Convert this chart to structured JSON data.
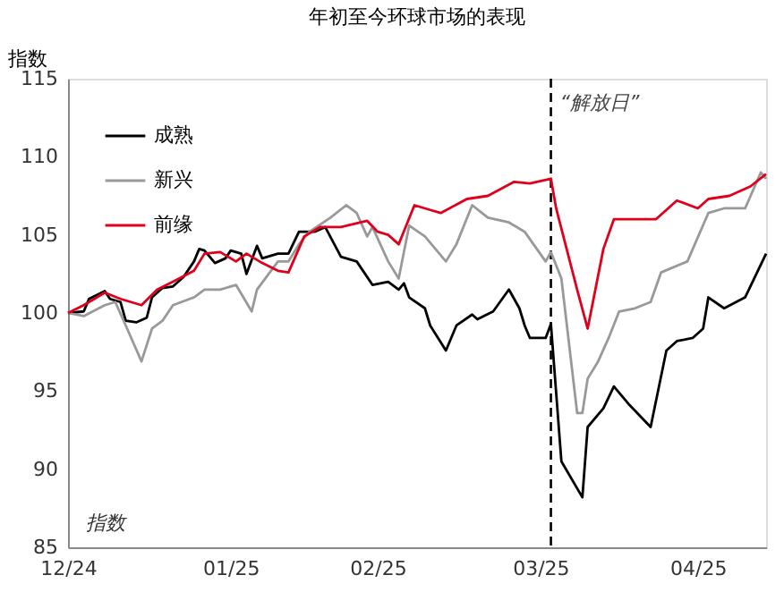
{
  "chart_data": {
    "type": "line",
    "title": "年初至今环球市场的表现",
    "ylabel": "指数",
    "annotations": [
      "指数"
    ],
    "xlim": [
      "2024-12-31",
      "2025-05-13"
    ],
    "xticks": [
      {
        "value": "2024-12-31",
        "label": "12/24"
      },
      {
        "value": "2025-01-31",
        "label": "01/25"
      },
      {
        "value": "2025-02-28",
        "label": "02/25"
      },
      {
        "value": "2025-03-31",
        "label": "03/25"
      },
      {
        "value": "2025-04-30",
        "label": "04/25"
      }
    ],
    "ylim": [
      85,
      115
    ],
    "yticks": [
      85,
      90,
      95,
      100,
      105,
      110,
      115
    ],
    "grid": false,
    "legend": "top left",
    "line_style": "solid",
    "marker": "none",
    "ref_lines": [
      {
        "axis": "x",
        "value": "2025-04-02",
        "label": "“解放日”",
        "color": "#000000",
        "line_style": "dashed"
      }
    ],
    "series": [
      {
        "name": "成熟",
        "color": "#000000",
        "x": [
          "2024-12-31",
          "2025-01-03",
          "2025-01-04",
          "2025-01-07",
          "2025-01-08",
          "2025-01-10",
          "2025-01-11",
          "2025-01-13",
          "2025-01-15",
          "2025-01-16",
          "2025-01-18",
          "2025-01-20",
          "2025-01-22",
          "2025-01-24",
          "2025-01-25",
          "2025-01-26",
          "2025-01-28",
          "2025-01-30",
          "2025-01-31",
          "2025-02-02",
          "2025-02-03",
          "2025-02-05",
          "2025-02-06",
          "2025-02-09",
          "2025-02-11",
          "2025-02-13",
          "2025-02-16",
          "2025-02-18",
          "2025-02-21",
          "2025-02-24",
          "2025-02-27",
          "2025-03-02",
          "2025-03-04",
          "2025-03-05",
          "2025-03-06",
          "2025-03-09",
          "2025-03-10",
          "2025-03-13",
          "2025-03-14",
          "2025-03-15",
          "2025-03-18",
          "2025-03-19",
          "2025-03-22",
          "2025-03-25",
          "2025-03-27",
          "2025-03-28",
          "2025-03-29",
          "2025-04-01",
          "2025-04-02",
          "2025-04-04",
          "2025-04-08",
          "2025-04-09",
          "2025-04-12",
          "2025-04-14",
          "2025-04-17",
          "2025-04-21",
          "2025-04-24",
          "2025-04-26",
          "2025-04-29",
          "2025-05-01",
          "2025-05-02",
          "2025-05-05",
          "2025-05-09",
          "2025-05-13"
        ],
        "values": [
          100.0,
          100.1,
          100.9,
          101.4,
          100.9,
          100.7,
          99.5,
          99.4,
          99.7,
          101.0,
          101.6,
          101.7,
          102.3,
          103.3,
          104.1,
          104.0,
          103.2,
          103.5,
          104.0,
          103.8,
          102.5,
          104.3,
          103.5,
          103.8,
          103.8,
          105.2,
          105.2,
          105.5,
          103.6,
          103.3,
          101.8,
          102.0,
          101.5,
          101.9,
          101.0,
          100.3,
          99.2,
          97.6,
          98.4,
          99.2,
          99.9,
          99.6,
          100.1,
          101.5,
          100.3,
          99.2,
          98.4,
          98.4,
          99.3,
          90.5,
          88.2,
          92.7,
          93.9,
          95.3,
          94.1,
          92.7,
          97.6,
          98.2,
          98.4,
          99.0,
          101.0,
          100.3,
          101.0,
          103.8
        ]
      },
      {
        "name": "新兴",
        "color": "#999999",
        "x": [
          "2024-12-31",
          "2025-01-03",
          "2025-01-07",
          "2025-01-09",
          "2025-01-11",
          "2025-01-14",
          "2025-01-16",
          "2025-01-18",
          "2025-01-20",
          "2025-01-24",
          "2025-01-26",
          "2025-01-29",
          "2025-02-01",
          "2025-02-04",
          "2025-02-05",
          "2025-02-09",
          "2025-02-11",
          "2025-02-13",
          "2025-02-15",
          "2025-02-19",
          "2025-02-22",
          "2025-02-24",
          "2025-02-26",
          "2025-02-27",
          "2025-03-02",
          "2025-03-04",
          "2025-03-06",
          "2025-03-09",
          "2025-03-13",
          "2025-03-15",
          "2025-03-18",
          "2025-03-21",
          "2025-03-25",
          "2025-03-28",
          "2025-04-01",
          "2025-04-02",
          "2025-04-04",
          "2025-04-07",
          "2025-04-08",
          "2025-04-09",
          "2025-04-11",
          "2025-04-13",
          "2025-04-15",
          "2025-04-18",
          "2025-04-21",
          "2025-04-23",
          "2025-04-28",
          "2025-05-02",
          "2025-05-05",
          "2025-05-09",
          "2025-05-12",
          "2025-05-13"
        ],
        "values": [
          100.0,
          99.8,
          100.5,
          100.7,
          99.2,
          96.9,
          99.0,
          99.5,
          100.5,
          101.0,
          101.5,
          101.5,
          101.8,
          100.1,
          101.5,
          103.3,
          103.3,
          104.4,
          105.2,
          106.1,
          106.9,
          106.4,
          104.9,
          105.5,
          103.3,
          102.2,
          105.6,
          104.9,
          103.3,
          104.4,
          106.9,
          106.1,
          105.8,
          105.2,
          103.3,
          103.9,
          102.2,
          93.6,
          93.6,
          95.8,
          96.9,
          98.4,
          100.1,
          100.3,
          100.7,
          102.6,
          103.3,
          106.4,
          106.7,
          106.7,
          109.0,
          108.6
        ]
      },
      {
        "name": "前缘",
        "color": "#e0001b",
        "x": [
          "2024-12-31",
          "2025-01-03",
          "2025-01-07",
          "2025-01-10",
          "2025-01-14",
          "2025-01-17",
          "2025-01-20",
          "2025-01-24",
          "2025-01-26",
          "2025-01-29",
          "2025-02-01",
          "2025-02-03",
          "2025-02-06",
          "2025-02-09",
          "2025-02-11",
          "2025-02-14",
          "2025-02-17",
          "2025-02-21",
          "2025-02-26",
          "2025-02-28",
          "2025-03-02",
          "2025-03-04",
          "2025-03-07",
          "2025-03-10",
          "2025-03-12",
          "2025-03-17",
          "2025-03-21",
          "2025-03-26",
          "2025-03-29",
          "2025-04-02",
          "2025-04-03",
          "2025-04-07",
          "2025-04-09",
          "2025-04-12",
          "2025-04-14",
          "2025-04-22",
          "2025-04-26",
          "2025-04-30",
          "2025-05-02",
          "2025-05-06",
          "2025-05-10",
          "2025-05-13"
        ],
        "values": [
          100.0,
          100.5,
          101.3,
          100.9,
          100.5,
          101.5,
          102.0,
          102.7,
          103.8,
          103.9,
          103.3,
          103.8,
          103.2,
          102.7,
          102.6,
          104.9,
          105.5,
          105.5,
          105.9,
          105.2,
          105.0,
          104.4,
          106.9,
          106.6,
          106.4,
          107.3,
          107.5,
          108.4,
          108.3,
          108.6,
          106.7,
          101.5,
          99.0,
          104.1,
          106.0,
          106.0,
          107.2,
          106.7,
          107.3,
          107.5,
          108.1,
          108.9
        ]
      }
    ]
  }
}
